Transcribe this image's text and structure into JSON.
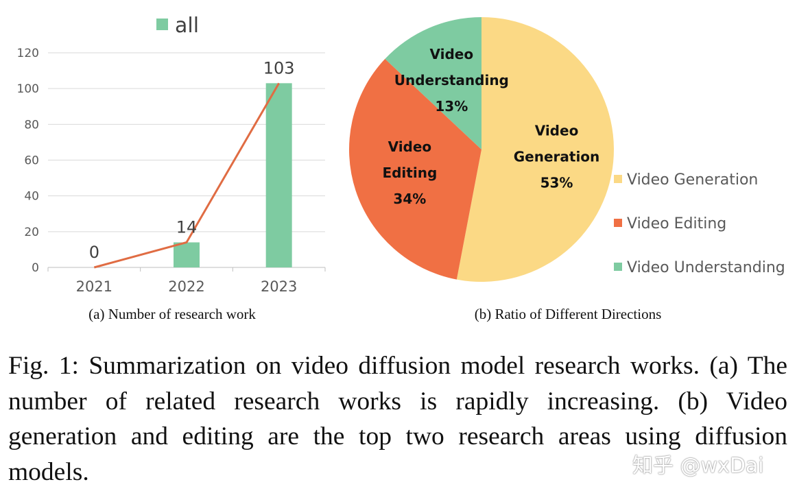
{
  "chart_data": [
    {
      "type": "bar",
      "categories": [
        "2021",
        "2022",
        "2023"
      ],
      "series": [
        {
          "name": "all",
          "values": [
            0,
            14,
            103
          ],
          "color": "#7ecba1"
        }
      ],
      "overlay_line": {
        "values": [
          0,
          14,
          103
        ],
        "color": "#e06c43"
      },
      "data_labels": [
        "0",
        "14",
        "103"
      ],
      "ylim": [
        0,
        120
      ],
      "yticks": [
        0,
        20,
        40,
        60,
        80,
        100,
        120
      ],
      "ytick_labels": [
        "0",
        "20",
        "40",
        "60",
        "80",
        "100",
        "120"
      ],
      "grid": true,
      "legend": "top-center",
      "subcaption": "(a) Number of research work"
    },
    {
      "type": "pie",
      "slices": [
        {
          "label": "Video Generation",
          "line1": "Video",
          "line2": "Generation",
          "percent_label": "53%",
          "value": 53,
          "color": "#fbd985"
        },
        {
          "label": "Video Editing",
          "line1": "Video",
          "line2": "Editing",
          "percent_label": "34%",
          "value": 34,
          "color": "#f07044"
        },
        {
          "label": "Video Understanding",
          "line1": "Video",
          "line2": "Understanding",
          "percent_label": "13%",
          "value": 13,
          "color": "#7ecba1"
        }
      ],
      "legend": "right",
      "subcaption": "(b) Ratio of Different Directions"
    }
  ],
  "caption": "Fig. 1: Summarization on video diffusion model research works. (a) The number of related research works is rapidly increasing. (b) Video generation and editing are the top two research areas using diffusion models.",
  "watermark": "知乎 @wxDai"
}
